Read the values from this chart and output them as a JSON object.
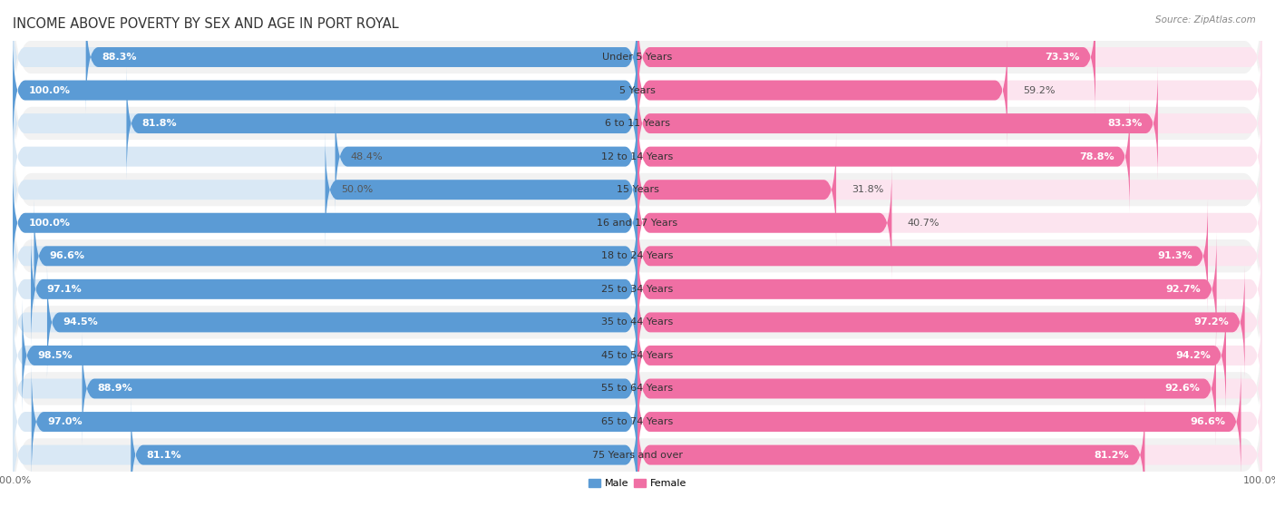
{
  "title": "INCOME ABOVE POVERTY BY SEX AND AGE IN PORT ROYAL",
  "source": "Source: ZipAtlas.com",
  "categories": [
    "Under 5 Years",
    "5 Years",
    "6 to 11 Years",
    "12 to 14 Years",
    "15 Years",
    "16 and 17 Years",
    "18 to 24 Years",
    "25 to 34 Years",
    "35 to 44 Years",
    "45 to 54 Years",
    "55 to 64 Years",
    "65 to 74 Years",
    "75 Years and over"
  ],
  "male": [
    88.3,
    100.0,
    81.8,
    48.4,
    50.0,
    100.0,
    96.6,
    97.1,
    94.5,
    98.5,
    88.9,
    97.0,
    81.1
  ],
  "female": [
    73.3,
    59.2,
    83.3,
    78.8,
    31.8,
    40.7,
    91.3,
    92.7,
    97.2,
    94.2,
    92.6,
    96.6,
    81.2
  ],
  "male_color": "#5b9bd5",
  "female_color": "#f06fa4",
  "male_color_light": "#d9e8f5",
  "female_color_light": "#fce4ef",
  "male_label": "Male",
  "female_label": "Female",
  "background_color": "#ffffff",
  "row_bg_even": "#f2f2f2",
  "row_bg_odd": "#ffffff",
  "title_fontsize": 10.5,
  "label_fontsize": 8.0,
  "value_fontsize": 8.0,
  "tick_fontsize": 8.0,
  "max_val": 100.0
}
